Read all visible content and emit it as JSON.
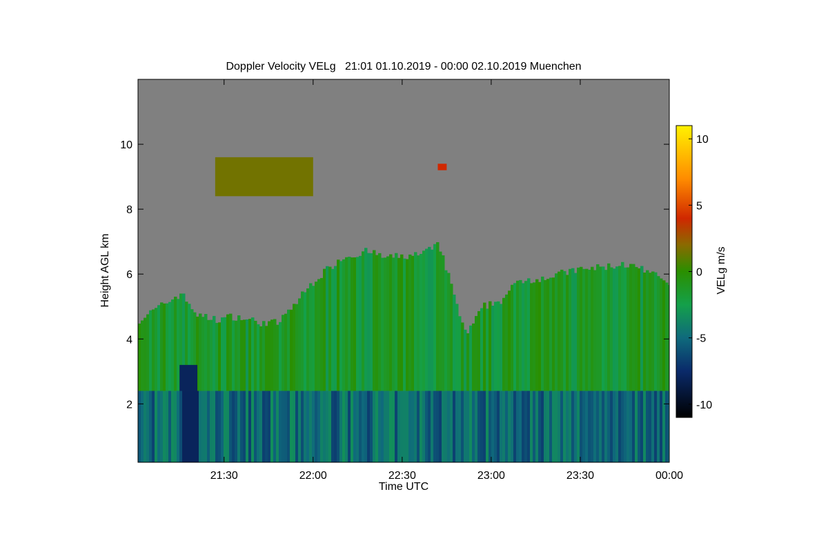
{
  "chart_data": {
    "type": "heatmap",
    "title": "Doppler Velocity VELg   21:01 01.10.2019 - 00:00 02.10.2019 Muenchen",
    "xlabel": "Time UTC",
    "ylabel": "Height AGL km",
    "colorbar_label": "VELg m/s",
    "x_ticks": [
      "21:30",
      "22:00",
      "22:30",
      "23:00",
      "23:30",
      "00:00"
    ],
    "x_tick_hours": [
      21.5,
      22.0,
      22.5,
      23.0,
      23.5,
      24.0
    ],
    "xlim_hours": [
      21.0167,
      24.0
    ],
    "y_ticks": [
      "2",
      "4",
      "6",
      "8",
      "10"
    ],
    "y_tick_values": [
      2,
      4,
      6,
      8,
      10
    ],
    "ylim": [
      0.2,
      12.0
    ],
    "colorbar_ticks": [
      "10",
      "5",
      "0",
      "-5",
      "-10"
    ],
    "colorbar_tick_values": [
      10,
      5,
      0,
      -5,
      -10
    ],
    "clim": [
      -11,
      11
    ],
    "no_data_color": "#808080",
    "colormap": [
      {
        "v": -11,
        "c": "#000000"
      },
      {
        "v": -7.5,
        "c": "#0a2a6a"
      },
      {
        "v": -5,
        "c": "#0f6a7c"
      },
      {
        "v": -2.5,
        "c": "#14a04a"
      },
      {
        "v": 0,
        "c": "#2a8f00"
      },
      {
        "v": 2,
        "c": "#8a6a00"
      },
      {
        "v": 4,
        "c": "#d02800"
      },
      {
        "v": 7,
        "c": "#ff8c00"
      },
      {
        "v": 11,
        "c": "#fff200"
      }
    ],
    "cloud_top_profile": {
      "hours": [
        21.02,
        21.25,
        21.35,
        21.45,
        21.55,
        21.7,
        21.8,
        22.0,
        22.15,
        22.3,
        22.4,
        22.6,
        22.7,
        22.85,
        22.95,
        23.05,
        23.15,
        23.3,
        23.45,
        23.6,
        23.75,
        23.9,
        24.0
      ],
      "top_km": [
        4.6,
        5.4,
        4.7,
        4.6,
        4.7,
        4.5,
        4.5,
        5.8,
        6.5,
        6.7,
        6.5,
        6.6,
        6.9,
        4.1,
        5.0,
        5.2,
        5.8,
        5.9,
        6.1,
        6.2,
        6.3,
        6.0,
        5.6
      ]
    },
    "boundary_layer_top_km": 2.4,
    "velocity_regions": [
      {
        "layer": "upper cloud",
        "height_km": [
          2.5,
          6.5
        ],
        "velocity_ms": -1.5
      },
      {
        "layer": "lower layer",
        "height_km": [
          0.2,
          2.4
        ],
        "velocity_ms": -5
      },
      {
        "layer": "strong downdraft",
        "hours": [
          21.25,
          21.35
        ],
        "height_km": [
          0.2,
          3.2
        ],
        "velocity_ms": -8
      },
      {
        "layer": "elevated cloud",
        "hours": [
          21.45,
          22.0
        ],
        "height_km": [
          8.4,
          9.6
        ],
        "velocity_ms": 1.5
      },
      {
        "layer": "small patch",
        "hours": [
          22.7,
          22.75
        ],
        "height_km": [
          9.2,
          9.4
        ],
        "velocity_ms": 4
      }
    ]
  }
}
